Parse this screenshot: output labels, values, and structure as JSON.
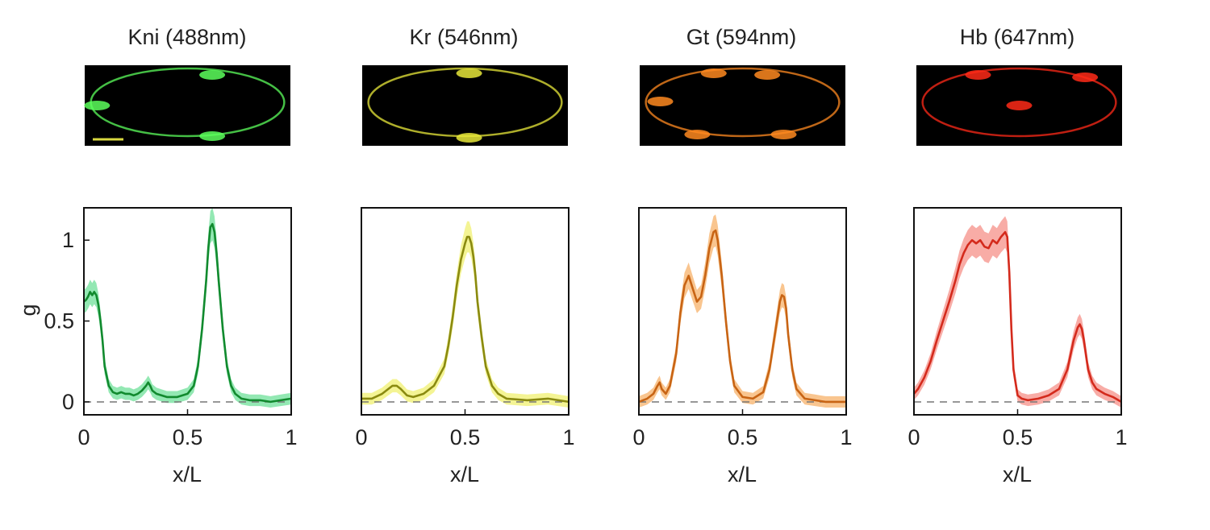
{
  "figure": {
    "ylabel": "g",
    "dashed_baseline": 0
  },
  "chart_data": [
    {
      "type": "line",
      "title": "Kni (488nm)",
      "xlabel": "x/L",
      "ylabel": "g",
      "xlim": [
        0,
        1
      ],
      "ylim": [
        -0.08,
        1.2
      ],
      "xticks": [
        "0",
        "0.5",
        "1"
      ],
      "yticks": [
        "0",
        "0.5",
        "1"
      ],
      "grid": false,
      "colors": {
        "line": "#118a2e",
        "band": "#6fe09a",
        "image_glow": "#5cff5c"
      },
      "series": [
        {
          "x": [
            0,
            0.01,
            0.02,
            0.03,
            0.04,
            0.05,
            0.06,
            0.07,
            0.08,
            0.09,
            0.1,
            0.12,
            0.14,
            0.16,
            0.18,
            0.2,
            0.22,
            0.24,
            0.26,
            0.28,
            0.3,
            0.31,
            0.32,
            0.33,
            0.35,
            0.4,
            0.45,
            0.5,
            0.53,
            0.55,
            0.57,
            0.59,
            0.6,
            0.61,
            0.62,
            0.63,
            0.64,
            0.65,
            0.67,
            0.69,
            0.71,
            0.73,
            0.76,
            0.8,
            0.85,
            0.9,
            0.95,
            1.0
          ],
          "values": [
            0.62,
            0.63,
            0.65,
            0.68,
            0.66,
            0.68,
            0.66,
            0.6,
            0.5,
            0.38,
            0.22,
            0.1,
            0.06,
            0.05,
            0.06,
            0.05,
            0.05,
            0.04,
            0.05,
            0.07,
            0.1,
            0.12,
            0.1,
            0.07,
            0.05,
            0.03,
            0.03,
            0.05,
            0.1,
            0.22,
            0.45,
            0.75,
            0.95,
            1.08,
            1.1,
            1.05,
            0.92,
            0.75,
            0.45,
            0.22,
            0.1,
            0.05,
            0.02,
            0.01,
            0.01,
            0.0,
            0.01,
            0.02
          ]
        }
      ]
    },
    {
      "type": "line",
      "title": "Kr (546nm)",
      "xlabel": "x/L",
      "ylabel": "",
      "xlim": [
        0,
        1
      ],
      "ylim": [
        -0.08,
        1.2
      ],
      "xticks": [
        "0",
        "0.5",
        "1"
      ],
      "yticks": [],
      "grid": false,
      "colors": {
        "line": "#8a8a10",
        "band": "#f0f070",
        "image_glow": "#e8e83a"
      },
      "series": [
        {
          "x": [
            0,
            0.05,
            0.1,
            0.13,
            0.15,
            0.17,
            0.19,
            0.22,
            0.25,
            0.3,
            0.35,
            0.4,
            0.42,
            0.44,
            0.46,
            0.48,
            0.5,
            0.51,
            0.52,
            0.53,
            0.54,
            0.55,
            0.56,
            0.58,
            0.6,
            0.63,
            0.66,
            0.7,
            0.8,
            0.9,
            1.0
          ],
          "values": [
            0.02,
            0.02,
            0.05,
            0.08,
            0.1,
            0.1,
            0.08,
            0.04,
            0.03,
            0.05,
            0.1,
            0.22,
            0.35,
            0.52,
            0.72,
            0.88,
            0.98,
            1.02,
            1.02,
            0.98,
            0.9,
            0.78,
            0.62,
            0.4,
            0.22,
            0.1,
            0.05,
            0.02,
            0.01,
            0.02,
            0.0
          ]
        }
      ]
    },
    {
      "type": "line",
      "title": "Gt (594nm)",
      "xlabel": "x/L",
      "ylabel": "",
      "xlim": [
        0,
        1
      ],
      "ylim": [
        -0.08,
        1.2
      ],
      "xticks": [
        "0",
        "0.5",
        "1"
      ],
      "yticks": [],
      "grid": false,
      "colors": {
        "line": "#c86414",
        "band": "#f7b26a",
        "image_glow": "#ff8a20"
      },
      "series": [
        {
          "x": [
            0,
            0.04,
            0.07,
            0.09,
            0.1,
            0.11,
            0.13,
            0.15,
            0.18,
            0.2,
            0.22,
            0.24,
            0.26,
            0.28,
            0.3,
            0.32,
            0.34,
            0.36,
            0.37,
            0.38,
            0.4,
            0.42,
            0.44,
            0.46,
            0.5,
            0.55,
            0.6,
            0.63,
            0.66,
            0.68,
            0.69,
            0.7,
            0.71,
            0.72,
            0.74,
            0.76,
            0.8,
            0.85,
            0.9,
            0.95,
            1.0
          ],
          "values": [
            0.0,
            0.02,
            0.05,
            0.1,
            0.12,
            0.08,
            0.05,
            0.1,
            0.3,
            0.55,
            0.72,
            0.78,
            0.7,
            0.62,
            0.65,
            0.78,
            0.95,
            1.05,
            1.06,
            1.0,
            0.78,
            0.5,
            0.25,
            0.1,
            0.03,
            0.02,
            0.06,
            0.2,
            0.45,
            0.62,
            0.66,
            0.65,
            0.58,
            0.42,
            0.2,
            0.08,
            0.02,
            0.01,
            0.0,
            0.0,
            0.0
          ]
        }
      ]
    },
    {
      "type": "line",
      "title": "Hb (647nm)",
      "xlabel": "x/L",
      "ylabel": "",
      "xlim": [
        0,
        1
      ],
      "ylim": [
        -0.08,
        1.2
      ],
      "xticks": [
        "0",
        "0.5",
        "1"
      ],
      "yticks": [],
      "grid": false,
      "colors": {
        "line": "#d42a1c",
        "band": "#f59088",
        "image_glow": "#ff2a18"
      },
      "series": [
        {
          "x": [
            0,
            0.02,
            0.05,
            0.08,
            0.11,
            0.14,
            0.17,
            0.2,
            0.22,
            0.24,
            0.26,
            0.28,
            0.3,
            0.32,
            0.34,
            0.36,
            0.38,
            0.4,
            0.42,
            0.44,
            0.45,
            0.46,
            0.47,
            0.48,
            0.5,
            0.52,
            0.55,
            0.6,
            0.65,
            0.7,
            0.74,
            0.77,
            0.79,
            0.8,
            0.81,
            0.82,
            0.84,
            0.86,
            0.88,
            0.92,
            0.96,
            1.0
          ],
          "values": [
            0.05,
            0.08,
            0.15,
            0.25,
            0.38,
            0.5,
            0.62,
            0.75,
            0.85,
            0.92,
            0.97,
            1.0,
            0.98,
            1.0,
            0.96,
            0.95,
            1.0,
            0.98,
            1.02,
            1.05,
            1.02,
            0.8,
            0.45,
            0.2,
            0.04,
            0.02,
            0.01,
            0.02,
            0.04,
            0.08,
            0.2,
            0.38,
            0.46,
            0.48,
            0.45,
            0.38,
            0.2,
            0.12,
            0.08,
            0.05,
            0.03,
            0.0
          ]
        }
      ]
    }
  ]
}
